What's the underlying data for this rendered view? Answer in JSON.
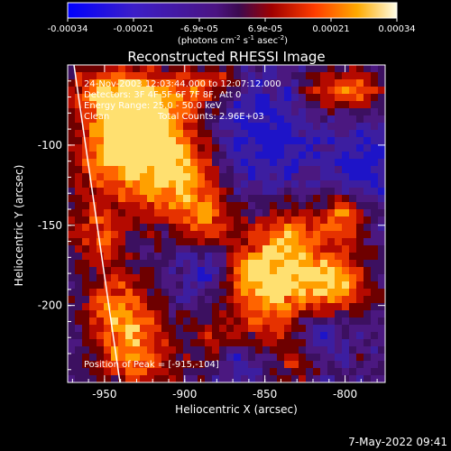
{
  "colorbar": {
    "ticks": [
      "-0.00034",
      "-0.00021",
      "-6.9e-05",
      "6.9e-05",
      "0.00021",
      "0.00034"
    ],
    "units_prefix": "(photons cm",
    "units_exp1": "-2",
    "units_mid1": " s",
    "units_exp2": "-1",
    "units_mid2": " asec",
    "units_exp3": "-2",
    "units_suffix": ")"
  },
  "title": "Reconstructed RHESSI Image",
  "annotations": {
    "time": "24-Nov-2003 12:03:44.000 to 12:07:12.000",
    "detectors": "Detectors: 3F 4F 5F 6F 7F 8F, Att 0",
    "energy": "Energy Range: 25.0 - 50.0 keV",
    "method": "Clean",
    "counts": "Total Counts: 2.96E+03",
    "peak": "Position of Peak = [-915,-104]"
  },
  "x_axis": {
    "label": "Heliocentric X (arcsec)",
    "ticks": [
      "-950",
      "-900",
      "-850",
      "-800"
    ],
    "tick_values": [
      -950,
      -900,
      -850,
      -800
    ],
    "range": [
      -973,
      -775
    ]
  },
  "y_axis": {
    "label": "Heliocentric Y (arcsec)",
    "ticks": [
      "-100",
      "-150",
      "-200"
    ],
    "tick_values": [
      -100,
      -150,
      -200
    ],
    "range": [
      -248,
      -50
    ]
  },
  "footer_date": "7-May-2022 09:41",
  "colors": {
    "background": "#000000",
    "limb_line": "#ffffff"
  }
}
